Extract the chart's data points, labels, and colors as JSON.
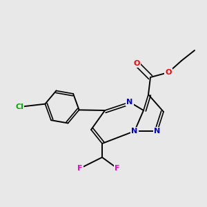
{
  "background_color": "#e8e8e8",
  "bond_color": "#000000",
  "atom_colors": {
    "N": "#0000cc",
    "O": "#ff0000",
    "F": "#ff00cc",
    "Cl": "#00aa00",
    "C": "#000000"
  },
  "figsize": [
    3.0,
    3.0
  ],
  "dpi": 100,
  "xlim": [
    0,
    300
  ],
  "ylim": [
    0,
    300
  ]
}
